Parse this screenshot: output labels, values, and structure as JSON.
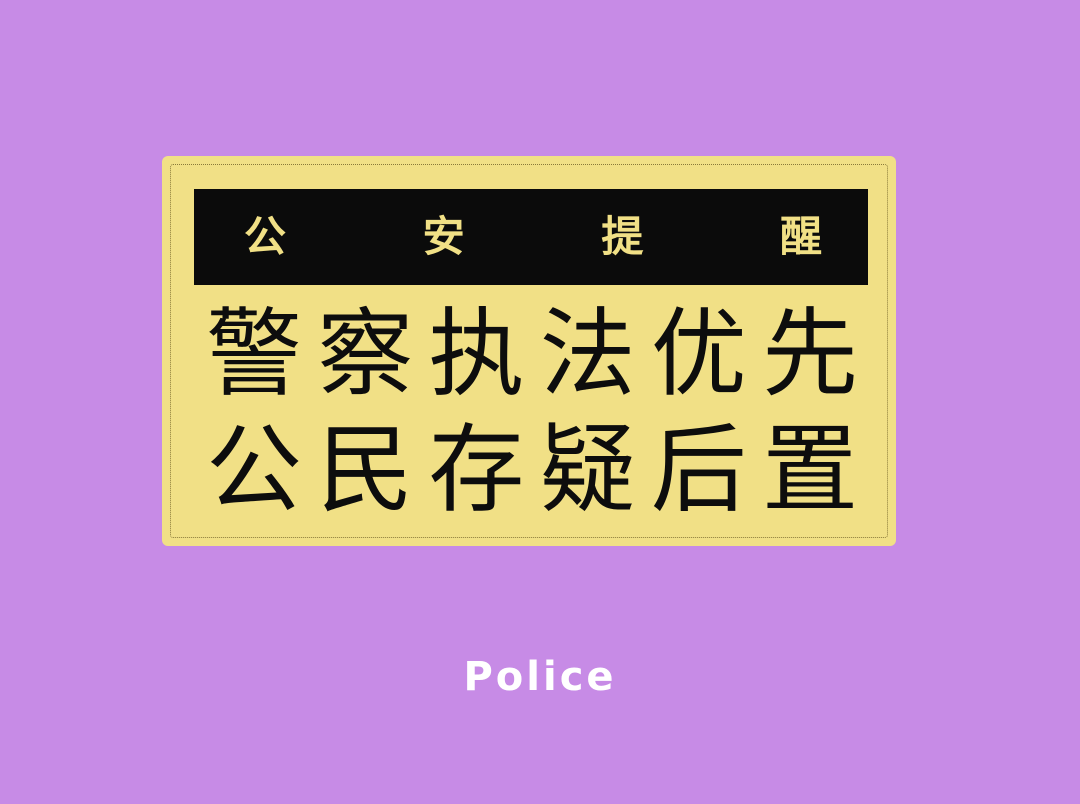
{
  "sign": {
    "header_chars": [
      "公",
      "安",
      "提",
      "醒"
    ],
    "line1_chars": [
      "警",
      "察",
      "执",
      "法",
      "优",
      "先"
    ],
    "line2_chars": [
      "公",
      "民",
      "存",
      "疑",
      "后",
      "置"
    ]
  },
  "footer": {
    "text": "Police"
  },
  "colors": {
    "background": "#c78be6",
    "sign": "#f1e086",
    "header_bar": "#0b0b0b",
    "header_text": "#f1e086",
    "main_text": "#0d0d0d",
    "footer_text": "#ffffff"
  }
}
